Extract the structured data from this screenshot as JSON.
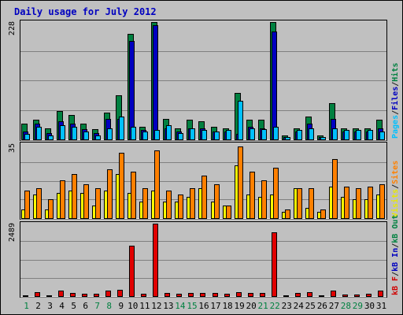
{
  "chart_data": {
    "type": "bar",
    "title": "Daily usage for July 2012",
    "categories": [
      "1",
      "2",
      "3",
      "4",
      "5",
      "6",
      "7",
      "8",
      "9",
      "10",
      "11",
      "12",
      "13",
      "14",
      "15",
      "16",
      "17",
      "18",
      "19",
      "20",
      "21",
      "22",
      "23",
      "24",
      "25",
      "26",
      "27",
      "28",
      "29",
      "30",
      "31"
    ],
    "weekend_days": [
      "1",
      "7",
      "8",
      "14",
      "15",
      "21",
      "22",
      "28",
      "29"
    ],
    "panels": [
      {
        "id": "hits",
        "ymax_label": "228",
        "ylim": [
          0,
          228
        ],
        "axis_label_parts": [
          {
            "text": "Pages",
            "color": "#00c0ff"
          },
          {
            "text": "/",
            "color": "#202020"
          },
          {
            "text": "Files",
            "color": "#0000c0"
          },
          {
            "text": "/",
            "color": "#202020"
          },
          {
            "text": "Hits",
            "color": "#008040"
          }
        ],
        "series": [
          {
            "name": "Hits",
            "color": "#008040",
            "values": [
              30,
              38,
              22,
              55,
              48,
              30,
              20,
              52,
              85,
              205,
              25,
              228,
              40,
              22,
              38,
              35,
              25,
              22,
              90,
              38,
              38,
              228,
              8,
              22,
              45,
              8,
              70,
              22,
              22,
              22,
              38
            ]
          },
          {
            "name": "Files",
            "color": "#0000c0",
            "values": [
              15,
              30,
              12,
              35,
              30,
              20,
              12,
              40,
              40,
              192,
              18,
              222,
              22,
              15,
              22,
              22,
              15,
              15,
              10,
              25,
              22,
              210,
              5,
              15,
              30,
              5,
              40,
              15,
              15,
              15,
              22
            ]
          },
          {
            "name": "Pages",
            "color": "#00c0ff",
            "values": [
              10,
              25,
              8,
              28,
              25,
              15,
              8,
              22,
              45,
              25,
              15,
              18,
              28,
              12,
              22,
              18,
              15,
              18,
              75,
              22,
              20,
              25,
              4,
              18,
              22,
              4,
              22,
              18,
              18,
              18,
              15
            ]
          }
        ]
      },
      {
        "id": "visits",
        "ymax_label": "35",
        "ylim": [
          0,
          35
        ],
        "axis_label_parts": [
          {
            "text": "Visits",
            "color": "#e8e800"
          },
          {
            "text": "/",
            "color": "#202020"
          },
          {
            "text": "Sites",
            "color": "#ff8000"
          }
        ],
        "series": [
          {
            "name": "Visits",
            "color": "#ffff00",
            "values": [
              4,
              11,
              4,
              12,
              13,
              12,
              6,
              13,
              21,
              12,
              8,
              13,
              8,
              8,
              10,
              14,
              8,
              6,
              25,
              11,
              10,
              11,
              3,
              14,
              5,
              3,
              15,
              10,
              9,
              9,
              11
            ]
          },
          {
            "name": "Sites",
            "color": "#ff8000",
            "values": [
              13,
              14,
              9,
              18,
              21,
              16,
              14,
              23,
              31,
              22,
              14,
              32,
              13,
              11,
              14,
              20,
              16,
              6,
              34,
              22,
              18,
              24,
              4,
              14,
              14,
              4,
              28,
              15,
              14,
              15,
              16
            ]
          }
        ]
      },
      {
        "id": "kbytes",
        "ymax_label": "2489",
        "ylim": [
          0,
          2489
        ],
        "axis_label_parts": [
          {
            "text": "kB F",
            "color": "#d00000"
          },
          {
            "text": "/",
            "color": "#202020"
          },
          {
            "text": "kB In",
            "color": "#0000c0"
          },
          {
            "text": "/",
            "color": "#202020"
          },
          {
            "text": "kB Out",
            "color": "#008040"
          }
        ],
        "series": [
          {
            "name": "kB F",
            "color": "#e00000",
            "values": [
              40,
              140,
              40,
              180,
              100,
              80,
              80,
              180,
              220,
              1720,
              80,
              2489,
              120,
              90,
              110,
              110,
              100,
              90,
              140,
              100,
              110,
              2180,
              40,
              100,
              140,
              40,
              200,
              60,
              60,
              90,
              180
            ]
          }
        ]
      }
    ]
  }
}
